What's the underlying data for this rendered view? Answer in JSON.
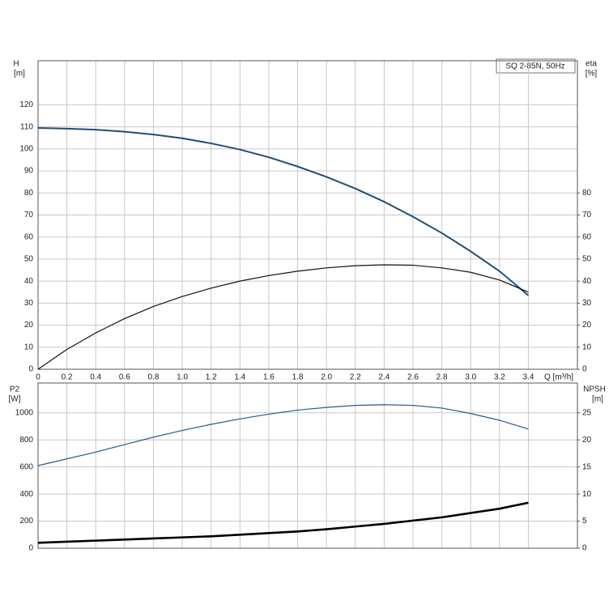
{
  "chart_data": [
    {
      "type": "line",
      "label_box": "SQ 2-85N, 50Hz",
      "y_label": "H",
      "y_unit": "[m]",
      "y2_label": "eta",
      "y2_unit": "[%]",
      "x_label": "Q [m³/h]",
      "x": [
        0,
        0.2,
        0.4,
        0.6,
        0.8,
        1.0,
        1.2,
        1.4,
        1.6,
        1.8,
        2.0,
        2.2,
        2.4,
        2.6,
        2.8,
        3.0,
        3.2,
        3.4
      ],
      "xlim": [
        0,
        3.74
      ],
      "xticks": [
        0,
        0.2,
        0.4,
        0.6,
        0.8,
        {
          "value": 1,
          "label": "1.0"
        },
        1.2,
        1.4,
        1.6,
        1.8,
        {
          "value": 2,
          "label": "2.0"
        },
        2.2,
        2.4,
        2.6,
        2.8,
        {
          "value": 3,
          "label": "3.0"
        },
        3.2,
        3.4
      ],
      "ylim": [
        0,
        140
      ],
      "yticks": [
        0,
        10,
        20,
        30,
        40,
        50,
        60,
        70,
        80,
        90,
        100,
        110,
        120
      ],
      "y2lim": [
        0,
        140
      ],
      "y2ticks": [
        0,
        10,
        20,
        30,
        40,
        50,
        60,
        70,
        80
      ],
      "grid": true,
      "series": [
        {
          "name": "H",
          "color": "#1f4e79",
          "width": 2,
          "values": [
            109.5,
            109.2,
            108.7,
            107.8,
            106.5,
            104.8,
            102.5,
            99.7,
            96.2,
            92,
            87.3,
            82,
            76,
            69.2,
            61.8,
            53.5,
            44.5,
            33.5
          ]
        },
        {
          "name": "eta",
          "color": "#111111",
          "width": 1.2,
          "axis": "y2",
          "values": [
            0,
            9,
            16.5,
            23,
            28.5,
            33,
            36.8,
            40,
            42.5,
            44.5,
            46,
            47,
            47.4,
            47.2,
            46,
            44,
            40.5,
            35
          ]
        }
      ]
    },
    {
      "type": "line",
      "y_label": "P2",
      "y_unit": "[W]",
      "y2_label": "NPSH",
      "y2_unit": "[m]",
      "x": [
        0,
        0.2,
        0.4,
        0.6,
        0.8,
        1.0,
        1.2,
        1.4,
        1.6,
        1.8,
        2.0,
        2.2,
        2.4,
        2.6,
        2.8,
        3.0,
        3.2,
        3.4
      ],
      "xlim": [
        0,
        3.74
      ],
      "ylim": [
        0,
        1220
      ],
      "yticks": [
        0,
        200,
        400,
        600,
        800,
        1000
      ],
      "y2lim": [
        0,
        30.5
      ],
      "y2ticks": [
        0,
        5,
        10,
        15,
        20,
        25
      ],
      "grid": true,
      "series": [
        {
          "name": "P2",
          "color": "#2a5a8a",
          "width": 1.2,
          "values": [
            610,
            660,
            710,
            765,
            820,
            870,
            915,
            955,
            990,
            1020,
            1040,
            1055,
            1060,
            1055,
            1035,
            995,
            945,
            880
          ]
        },
        {
          "name": "NPSH",
          "color": "#000000",
          "width": 2.6,
          "axis": "y2",
          "values": [
            1.0,
            1.2,
            1.4,
            1.6,
            1.8,
            2.0,
            2.2,
            2.5,
            2.8,
            3.1,
            3.5,
            4.0,
            4.5,
            5.1,
            5.7,
            6.5,
            7.3,
            8.4
          ]
        }
      ]
    }
  ]
}
